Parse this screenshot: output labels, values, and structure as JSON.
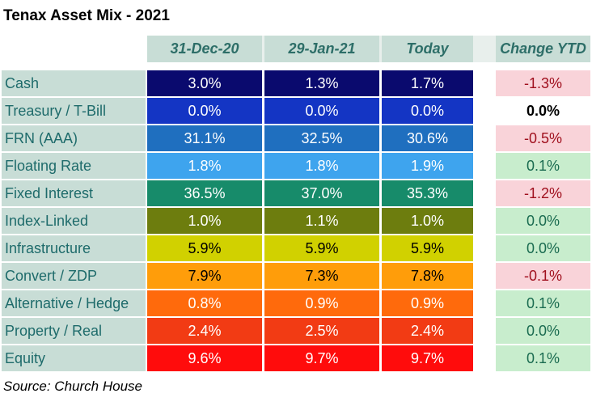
{
  "title": "Tenax Asset Mix - 2021",
  "source": "Source: Church House",
  "columns": [
    "31-Dec-20",
    "29-Jan-21",
    "Today",
    "Change YTD"
  ],
  "rows": [
    {
      "label": "Cash",
      "values": [
        "3.0%",
        "1.3%",
        "1.7%",
        "-1.3%"
      ],
      "color": "#0a0a6e",
      "text": "#ffffff"
    },
    {
      "label": "Treasury / T-Bill",
      "values": [
        "0.0%",
        "0.0%",
        "0.0%",
        "0.0%"
      ],
      "color": "#1435c4",
      "text": "#ffffff"
    },
    {
      "label": "FRN (AAA)",
      "values": [
        "31.1%",
        "32.5%",
        "30.6%",
        "-0.5%"
      ],
      "color": "#1f6fbf",
      "text": "#ffffff"
    },
    {
      "label": "Floating Rate",
      "values": [
        "1.8%",
        "1.8%",
        "1.9%",
        "0.1%"
      ],
      "color": "#3ea4ee",
      "text": "#ffffff"
    },
    {
      "label": "Fixed Interest",
      "values": [
        "36.5%",
        "37.0%",
        "35.3%",
        "-1.2%"
      ],
      "color": "#178b6a",
      "text": "#ffffff"
    },
    {
      "label": "Index-Linked",
      "values": [
        "1.0%",
        "1.1%",
        "1.0%",
        "0.0%"
      ],
      "color": "#6d7d0e",
      "text": "#ffffff"
    },
    {
      "label": "Infrastructure",
      "values": [
        "5.9%",
        "5.9%",
        "5.9%",
        "0.0%"
      ],
      "color": "#d1d100",
      "text": "#000000"
    },
    {
      "label": "Convert / ZDP",
      "values": [
        "7.9%",
        "7.3%",
        "7.8%",
        "-0.1%"
      ],
      "color": "#ff9d0a",
      "text": "#000000"
    },
    {
      "label": "Alternative / Hedge",
      "values": [
        "0.8%",
        "0.9%",
        "0.9%",
        "0.1%"
      ],
      "color": "#ff6a0c",
      "text": "#ffffff"
    },
    {
      "label": "Property / Real",
      "values": [
        "2.4%",
        "2.5%",
        "2.4%",
        "0.0%"
      ],
      "color": "#f23b14",
      "text": "#ffffff"
    },
    {
      "label": "Equity",
      "values": [
        "9.6%",
        "9.7%",
        "9.7%",
        "0.1%"
      ],
      "color": "#ff0c0c",
      "text": "#ffffff"
    }
  ],
  "change_colors": {
    "negative": "#f9d3d9",
    "positive": "#c8edcd",
    "zero_text": "#1a6b50",
    "negative_text": "#a0101e"
  },
  "chart_data": {
    "type": "table",
    "title": "Tenax Asset Mix - 2021",
    "columns": [
      "31-Dec-20",
      "29-Jan-21",
      "Today",
      "Change YTD"
    ],
    "categories": [
      "Cash",
      "Treasury / T-Bill",
      "FRN (AAA)",
      "Floating Rate",
      "Fixed Interest",
      "Index-Linked",
      "Infrastructure",
      "Convert / ZDP",
      "Alternative / Hedge",
      "Property / Real",
      "Equity"
    ],
    "series": [
      {
        "name": "31-Dec-20",
        "values": [
          3.0,
          0.0,
          31.1,
          1.8,
          36.5,
          1.0,
          5.9,
          7.9,
          0.8,
          2.4,
          9.6
        ]
      },
      {
        "name": "29-Jan-21",
        "values": [
          1.3,
          0.0,
          32.5,
          1.8,
          37.0,
          1.1,
          5.9,
          7.3,
          0.9,
          2.5,
          9.7
        ]
      },
      {
        "name": "Today",
        "values": [
          1.7,
          0.0,
          30.6,
          1.9,
          35.3,
          1.0,
          5.9,
          7.8,
          0.9,
          2.4,
          9.7
        ]
      },
      {
        "name": "Change YTD",
        "values": [
          -1.3,
          0.0,
          -0.5,
          0.1,
          -1.2,
          0.0,
          0.0,
          -0.1,
          0.1,
          0.0,
          0.1
        ]
      }
    ],
    "unit": "%"
  }
}
